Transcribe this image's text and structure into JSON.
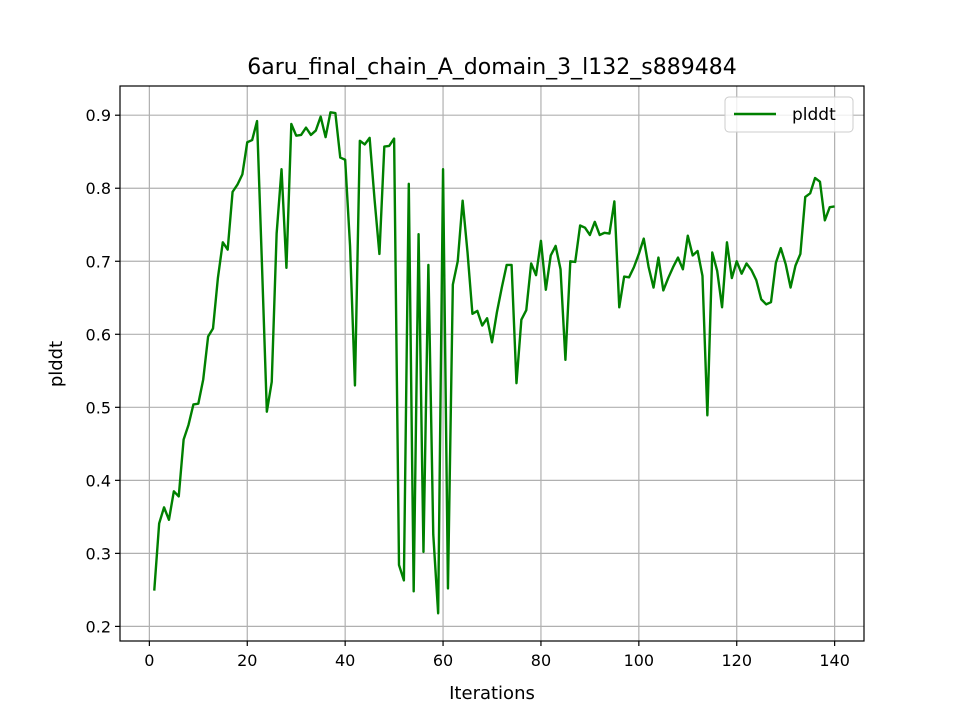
{
  "chart_data": {
    "type": "line",
    "title": "6aru_final_chain_A_domain_3_l132_s889484",
    "xlabel": "Iterations",
    "ylabel": "plddt",
    "xlim": [
      -6,
      146
    ],
    "ylim": [
      0.18,
      0.94
    ],
    "xticks": [
      0,
      20,
      40,
      60,
      80,
      100,
      120,
      140
    ],
    "yticks": [
      0.2,
      0.3,
      0.4,
      0.5,
      0.6,
      0.7,
      0.8,
      0.9
    ],
    "ytick_labels": [
      "0.2",
      "0.3",
      "0.4",
      "0.5",
      "0.6",
      "0.7",
      "0.8",
      "0.9"
    ],
    "grid": true,
    "legend_position": "top-right",
    "colors": {
      "plddt": "#008000",
      "grid": "#b0b0b0"
    },
    "series": [
      {
        "name": "plddt",
        "x": [
          1,
          2,
          3,
          4,
          5,
          6,
          7,
          8,
          9,
          10,
          11,
          12,
          13,
          14,
          15,
          16,
          17,
          18,
          19,
          20,
          21,
          22,
          23,
          24,
          25,
          26,
          27,
          28,
          29,
          30,
          31,
          32,
          33,
          34,
          35,
          36,
          37,
          38,
          39,
          40,
          41,
          42,
          43,
          44,
          45,
          46,
          47,
          48,
          49,
          50,
          51,
          52,
          53,
          54,
          55,
          56,
          57,
          58,
          59,
          60,
          61,
          62,
          63,
          64,
          65,
          66,
          67,
          68,
          69,
          70,
          71,
          72,
          73,
          74,
          75,
          76,
          77,
          78,
          79,
          80,
          81,
          82,
          83,
          84,
          85,
          86,
          87,
          88,
          89,
          90,
          91,
          92,
          93,
          94,
          95,
          96,
          97,
          98,
          99,
          100,
          101,
          102,
          103,
          104,
          105,
          106,
          107,
          108,
          109,
          110,
          111,
          112,
          113,
          114,
          115,
          116,
          117,
          118,
          119,
          120,
          121,
          122,
          123,
          124,
          125,
          126,
          127,
          128,
          129,
          130,
          131,
          132,
          133,
          134,
          135,
          136,
          137,
          138,
          139,
          140
        ],
        "y": [
          0.249,
          0.341,
          0.363,
          0.346,
          0.385,
          0.378,
          0.456,
          0.476,
          0.504,
          0.505,
          0.538,
          0.597,
          0.608,
          0.677,
          0.726,
          0.716,
          0.795,
          0.805,
          0.819,
          0.863,
          0.866,
          0.892,
          0.696,
          0.494,
          0.535,
          0.738,
          0.826,
          0.691,
          0.888,
          0.872,
          0.873,
          0.883,
          0.873,
          0.879,
          0.898,
          0.87,
          0.904,
          0.903,
          0.842,
          0.839,
          0.721,
          0.53,
          0.865,
          0.86,
          0.869,
          0.785,
          0.71,
          0.857,
          0.858,
          0.868,
          0.284,
          0.263,
          0.806,
          0.248,
          0.737,
          0.302,
          0.695,
          0.326,
          0.218,
          0.826,
          0.252,
          0.668,
          0.7,
          0.783,
          0.712,
          0.628,
          0.632,
          0.612,
          0.622,
          0.589,
          0.63,
          0.664,
          0.695,
          0.695,
          0.533,
          0.62,
          0.633,
          0.697,
          0.681,
          0.728,
          0.661,
          0.708,
          0.721,
          0.689,
          0.565,
          0.7,
          0.699,
          0.749,
          0.746,
          0.736,
          0.754,
          0.736,
          0.739,
          0.738,
          0.782,
          0.637,
          0.679,
          0.678,
          0.692,
          0.71,
          0.731,
          0.692,
          0.664,
          0.705,
          0.66,
          0.677,
          0.692,
          0.705,
          0.689,
          0.735,
          0.708,
          0.714,
          0.68,
          0.489,
          0.712,
          0.687,
          0.637,
          0.726,
          0.677,
          0.7,
          0.683,
          0.697,
          0.688,
          0.674,
          0.648,
          0.641,
          0.644,
          0.698,
          0.718,
          0.696,
          0.664,
          0.694,
          0.71,
          0.788,
          0.793,
          0.814,
          0.809,
          0.756,
          0.774,
          0.775
        ]
      }
    ]
  }
}
